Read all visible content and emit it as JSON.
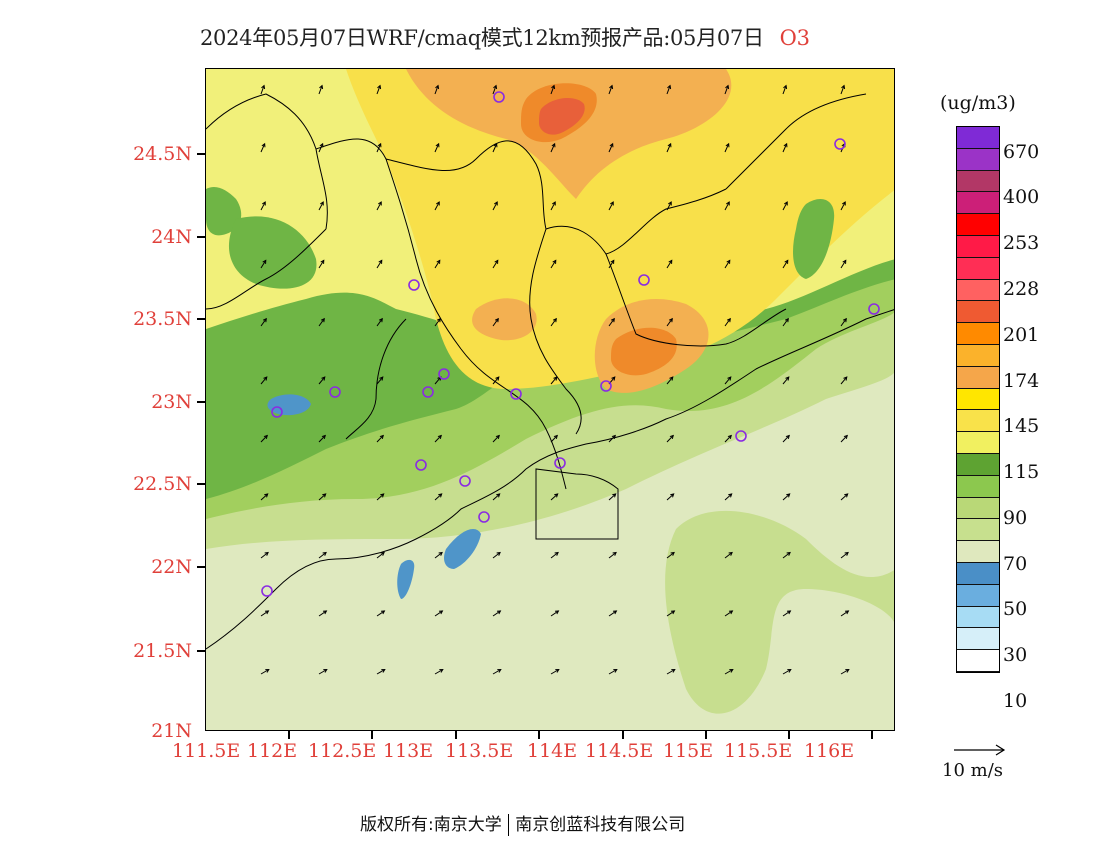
{
  "title": {
    "text": "2024年05月07日WRF/cmaq模式12km预报产品:05月07日",
    "pollutant": "O3"
  },
  "map": {
    "lat_ticks": [
      "24.5N",
      "24N",
      "23.5N",
      "23N",
      "22.5N",
      "22N",
      "21.5N",
      "21N"
    ],
    "lon_ticks": [
      "111.5E",
      "112E",
      "112.5E",
      "113E",
      "113.5E",
      "114E",
      "114.5E",
      "115E",
      "115.5E",
      "116E"
    ],
    "colors": {
      "sea_base": "#dfe9bf",
      "c50_70": "#c7de8f",
      "c70_90": "#a2cf5e",
      "c90_115": "#6fb545",
      "c115_145": "#f1f07a",
      "c145_174": "#f8e04a",
      "c174_201": "#f3b051",
      "c201_228": "#ef8a2a",
      "c228": "#e8603a",
      "c10_30": "#4f95c9",
      "boundary": "#000000",
      "station_marker": "#8a2be2"
    }
  },
  "legend": {
    "unit": "(ug/m3)",
    "colors": [
      "#7f2ad6",
      "#9b33c7",
      "#b23766",
      "#cc1f78",
      "#ff0000",
      "#ff1a47",
      "#ff2e55",
      "#ff6161",
      "#ef5a32",
      "#ff8a00",
      "#fbb22b",
      "#f5a64a",
      "#ffe600",
      "#f9e24a",
      "#f1f060",
      "#5ea332",
      "#8cc84e",
      "#b9d877",
      "#c7e08e",
      "#dfe8be",
      "#4a8fc7",
      "#6aaedf",
      "#a7dcf4",
      "#d6eff9",
      "#ffffff"
    ],
    "labels": [
      "670",
      "400",
      "253",
      "228",
      "201",
      "174",
      "145",
      "115",
      "90",
      "70",
      "50",
      "30",
      "10"
    ]
  },
  "wind_reference": {
    "label": "10 m/s"
  },
  "footer": {
    "copyright_left": "版权所有:南京大学",
    "copyright_right": "南京创蓝科技有限公司"
  }
}
